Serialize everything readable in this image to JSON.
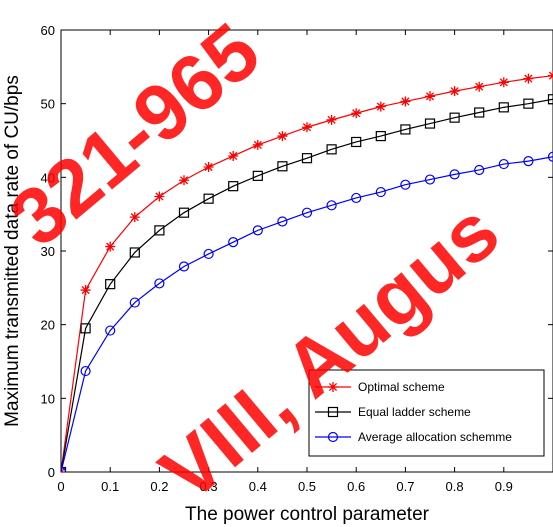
{
  "chart_data": {
    "type": "line",
    "title": "",
    "xlabel": "The power control parameter",
    "ylabel": "Maximum transmitted data rate of CU/bps",
    "xlim": [
      0,
      1
    ],
    "ylim": [
      0,
      60
    ],
    "xticks": [
      "0",
      "0.1",
      "0.2",
      "0.3",
      "0.4",
      "0.5",
      "0.6",
      "0.7",
      "0.8",
      "0.9"
    ],
    "yticks": [
      "0",
      "10",
      "20",
      "30",
      "40",
      "50",
      "60"
    ],
    "grid": false,
    "legend_position": "bottom-right",
    "x": [
      0,
      0.05,
      0.1,
      0.15,
      0.2,
      0.25,
      0.3,
      0.35,
      0.4,
      0.45,
      0.5,
      0.55,
      0.6,
      0.65,
      0.7,
      0.75,
      0.8,
      0.85,
      0.9,
      0.95,
      1.0
    ],
    "series": [
      {
        "name": "Optimal scheme",
        "color": "#ff0000",
        "marker": "star",
        "values": [
          0,
          24.7,
          30.6,
          34.6,
          37.4,
          39.6,
          41.4,
          42.9,
          44.4,
          45.6,
          46.8,
          47.8,
          48.7,
          49.6,
          50.3,
          51.0,
          51.7,
          52.3,
          52.9,
          53.4,
          53.8
        ]
      },
      {
        "name": "Equal ladder scheme",
        "color": "#000000",
        "marker": "square",
        "values": [
          0,
          19.5,
          25.5,
          29.8,
          32.8,
          35.2,
          37.1,
          38.8,
          40.2,
          41.5,
          42.6,
          43.8,
          44.8,
          45.6,
          46.5,
          47.3,
          48.1,
          48.8,
          49.5,
          50.0,
          50.6
        ]
      },
      {
        "name": "Average allocation schemme",
        "color": "#0000ff",
        "marker": "circle",
        "values": [
          0,
          13.7,
          19.2,
          23.0,
          25.6,
          27.9,
          29.6,
          31.2,
          32.8,
          34.0,
          35.2,
          36.2,
          37.2,
          38.0,
          39.0,
          39.7,
          40.4,
          41.0,
          41.8,
          42.2,
          42.8
        ]
      }
    ]
  },
  "watermark": {
    "lines": [
      "321-965",
      "VIII, Augus"
    ],
    "color": "#ff0000"
  }
}
